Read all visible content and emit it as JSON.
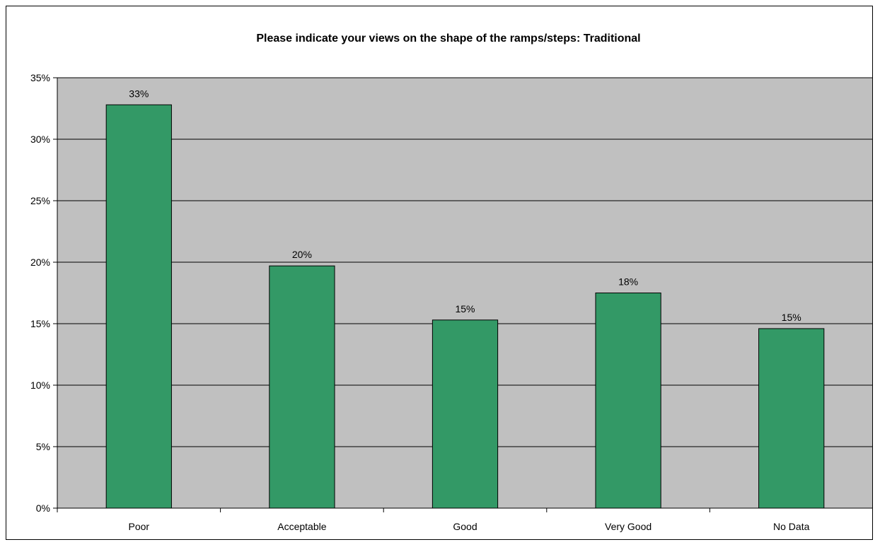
{
  "chart_data": {
    "type": "bar",
    "title": "Please indicate your views on the shape of the ramps/steps: Traditional",
    "xlabel": "",
    "ylabel": "",
    "categories": [
      "Poor",
      "Acceptable",
      "Good",
      "Very Good",
      "No Data"
    ],
    "values": [
      32.8,
      19.7,
      15.3,
      17.5,
      14.6
    ],
    "data_labels": [
      "33%",
      "20%",
      "15%",
      "18%",
      "15%"
    ],
    "ylim": [
      0,
      35
    ],
    "yticks": [
      0,
      5,
      10,
      15,
      20,
      25,
      30,
      35
    ],
    "ytick_labels": [
      "0%",
      "5%",
      "10%",
      "15%",
      "20%",
      "25%",
      "30%",
      "35%"
    ],
    "grid": true,
    "legend": "none",
    "colors": {
      "bar_fill": "#339966",
      "bar_stroke": "#000000",
      "plot_background": "#c0c0c0",
      "gridline": "#000000"
    }
  }
}
